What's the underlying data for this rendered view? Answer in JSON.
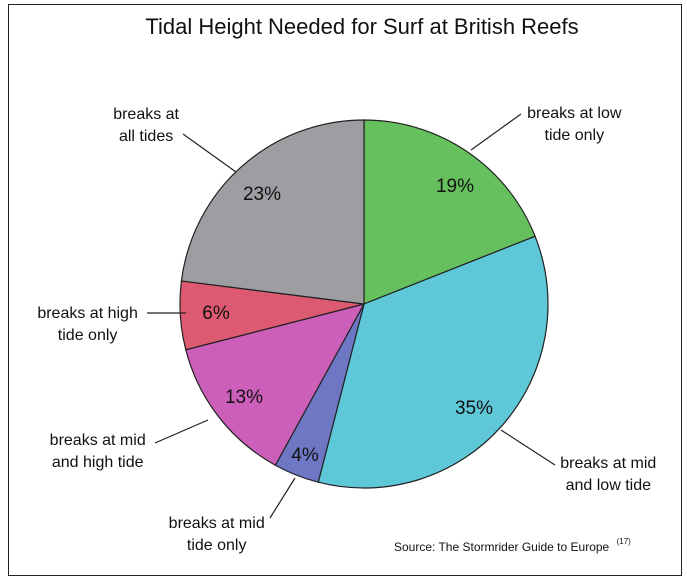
{
  "chart_data": {
    "type": "pie",
    "title": "Tidal Height Needed for Surf at British Reefs",
    "slices": [
      {
        "label_lines": [
          "breaks at low",
          "tide only"
        ],
        "value": 19,
        "pct_label": "19%",
        "color": "#66c05e"
      },
      {
        "label_lines": [
          "breaks at mid",
          "and low tide"
        ],
        "value": 35,
        "pct_label": "35%",
        "color": "#5ec8d8"
      },
      {
        "label_lines": [
          "breaks at mid",
          "tide only"
        ],
        "value": 4,
        "pct_label": "4%",
        "color": "#6d77c4"
      },
      {
        "label_lines": [
          "breaks at mid",
          "and high tide"
        ],
        "value": 13,
        "pct_label": "13%",
        "color": "#cc5fb9"
      },
      {
        "label_lines": [
          "breaks at high",
          "tide only"
        ],
        "value": 6,
        "pct_label": "6%",
        "color": "#dd5a72"
      },
      {
        "label_lines": [
          "breaks at",
          "all tides"
        ],
        "value": 23,
        "pct_label": "23%",
        "color": "#9d9ea2"
      }
    ],
    "source": "Source: The Stormrider Guide to Europe",
    "source_ref": "(17)"
  }
}
